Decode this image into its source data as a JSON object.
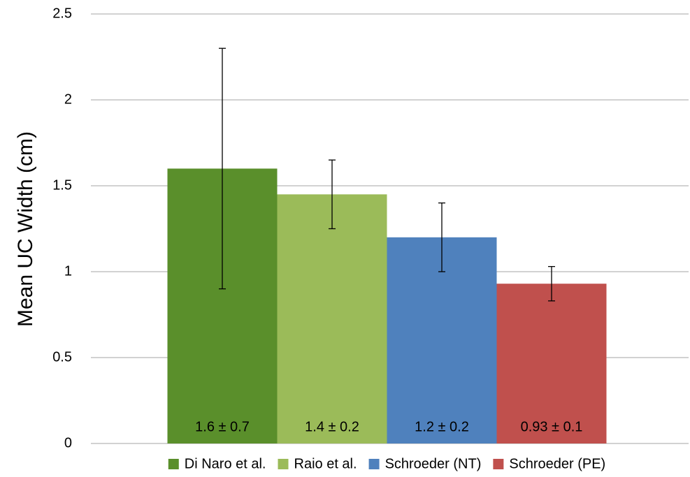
{
  "chart_data": {
    "type": "bar",
    "ylabel": "Mean UC Width (cm)",
    "ylim": [
      0,
      2.5
    ],
    "yticks": [
      0,
      0.5,
      1,
      1.5,
      2,
      2.5
    ],
    "grid": true,
    "legend": "bottom",
    "series": [
      {
        "name": "Di Naro et al.",
        "color": "#5a8f2b",
        "values": [
          1.6
        ],
        "errors": [
          0.7
        ],
        "value_labels": [
          "1.6 ± 0.7"
        ]
      },
      {
        "name": "Raio et al.",
        "color": "#9bbb59",
        "values": [
          1.45
        ],
        "errors": [
          0.2
        ],
        "value_labels": [
          "1.4 ± 0.2"
        ]
      },
      {
        "name": "Schroeder (NT)",
        "color": "#4f81bd",
        "values": [
          1.2
        ],
        "errors": [
          0.2
        ],
        "value_labels": [
          "1.2 ± 0.2"
        ]
      },
      {
        "name": "Schroeder (PE)",
        "color": "#c0504d",
        "values": [
          0.93
        ],
        "errors": [
          0.1
        ],
        "value_labels": [
          "0.93 ± 0.1"
        ]
      }
    ]
  }
}
